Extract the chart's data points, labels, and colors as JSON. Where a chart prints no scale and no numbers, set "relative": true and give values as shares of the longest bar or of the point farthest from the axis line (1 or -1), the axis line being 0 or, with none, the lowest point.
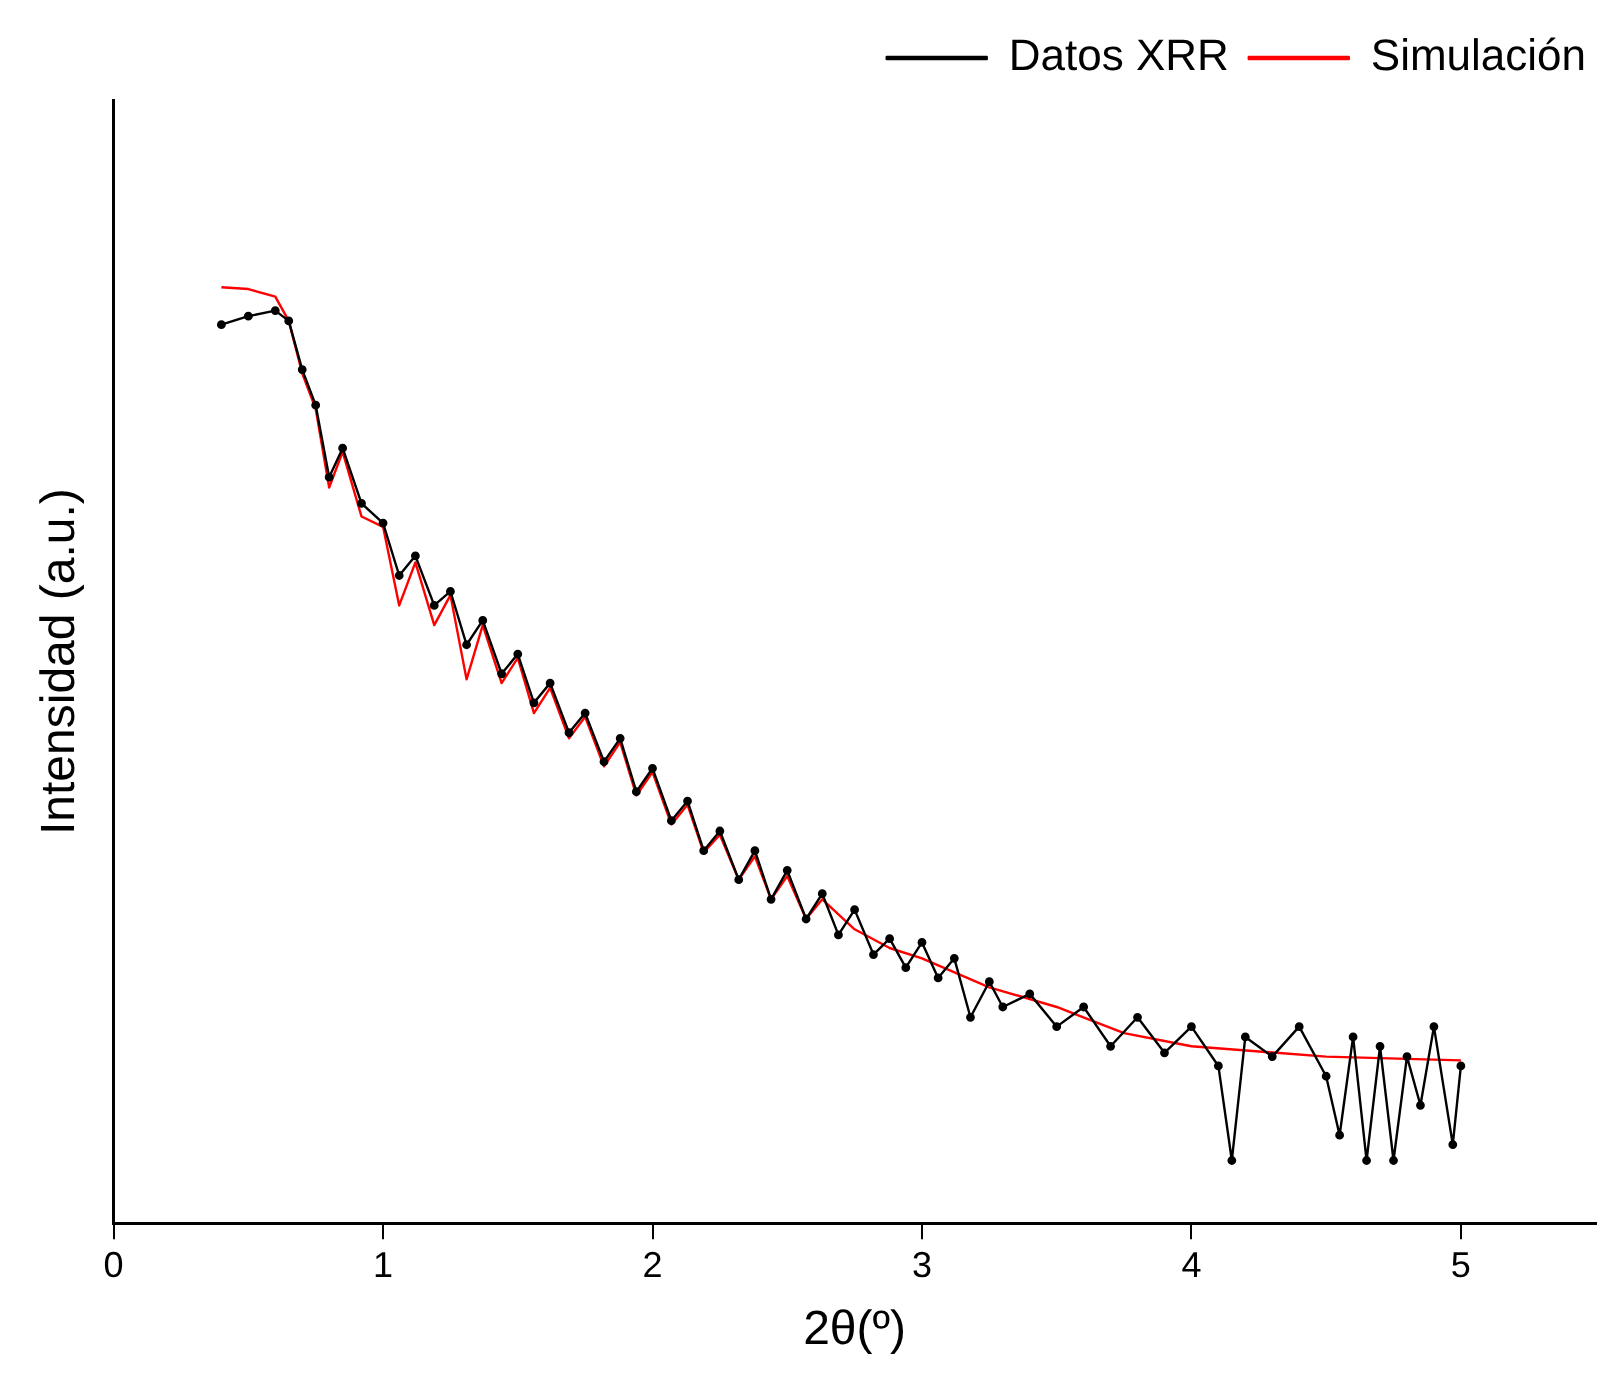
{
  "chart_data": {
    "type": "line",
    "xlabel": "2θ(º)",
    "ylabel": "Intensidad (a.u.)",
    "relative": true,
    "xlim": [
      0,
      5.5
    ],
    "xticks": [
      0,
      1,
      2,
      3,
      4,
      5
    ],
    "tick_labels": "x",
    "grid": false,
    "legend": "top right",
    "series": [
      {
        "name": "Datos XRR",
        "color": "#000000",
        "marker": "circle",
        "x": [
          0.4,
          0.5,
          0.6,
          0.65,
          0.7,
          0.75,
          0.8,
          0.85,
          0.92,
          1.0,
          1.06,
          1.12,
          1.19,
          1.25,
          1.31,
          1.37,
          1.44,
          1.5,
          1.56,
          1.62,
          1.69,
          1.75,
          1.82,
          1.88,
          1.94,
          2.0,
          2.07,
          2.13,
          2.19,
          2.25,
          2.32,
          2.38,
          2.44,
          2.5,
          2.57,
          2.63,
          2.69,
          2.75,
          2.82,
          2.88,
          2.94,
          3.0,
          3.06,
          3.12,
          3.18,
          3.25,
          3.3,
          3.4,
          3.5,
          3.6,
          3.7,
          3.8,
          3.9,
          4.0,
          4.1,
          4.15,
          4.2,
          4.3,
          4.4,
          4.5,
          4.55,
          4.6,
          4.65,
          4.7,
          4.75,
          4.8,
          4.85,
          4.9,
          4.97,
          5.0
        ],
        "values": [
          0.96,
          0.969,
          0.975,
          0.964,
          0.912,
          0.874,
          0.797,
          0.828,
          0.769,
          0.748,
          0.692,
          0.713,
          0.66,
          0.675,
          0.618,
          0.644,
          0.587,
          0.608,
          0.556,
          0.577,
          0.524,
          0.545,
          0.493,
          0.518,
          0.461,
          0.486,
          0.43,
          0.451,
          0.398,
          0.419,
          0.367,
          0.398,
          0.346,
          0.377,
          0.325,
          0.352,
          0.308,
          0.335,
          0.287,
          0.304,
          0.273,
          0.3,
          0.262,
          0.283,
          0.22,
          0.258,
          0.231,
          0.245,
          0.21,
          0.231,
          0.189,
          0.22,
          0.182,
          0.21,
          0.168,
          0.067,
          0.199,
          0.178,
          0.21,
          0.157,
          0.094,
          0.199,
          0.067,
          0.189,
          0.067,
          0.178,
          0.126,
          0.21,
          0.084,
          0.168
        ]
      },
      {
        "name": "Simulación",
        "color": "#ff0000",
        "marker": "none",
        "x": [
          0.4,
          0.5,
          0.6,
          0.65,
          0.7,
          0.75,
          0.8,
          0.85,
          0.92,
          1.0,
          1.06,
          1.12,
          1.19,
          1.25,
          1.31,
          1.37,
          1.44,
          1.5,
          1.56,
          1.62,
          1.69,
          1.75,
          1.82,
          1.88,
          1.94,
          2.0,
          2.07,
          2.13,
          2.19,
          2.25,
          2.32,
          2.38,
          2.44,
          2.5,
          2.57,
          2.63,
          2.75,
          2.88,
          3.0,
          3.25,
          3.5,
          3.75,
          4.0,
          4.5,
          5.0
        ],
        "values": [
          1,
          0.998,
          0.99,
          0.964,
          0.908,
          0.87,
          0.786,
          0.824,
          0.755,
          0.744,
          0.66,
          0.706,
          0.639,
          0.671,
          0.581,
          0.639,
          0.577,
          0.604,
          0.545,
          0.572,
          0.518,
          0.541,
          0.488,
          0.514,
          0.457,
          0.482,
          0.426,
          0.447,
          0.396,
          0.415,
          0.367,
          0.392,
          0.346,
          0.371,
          0.325,
          0.346,
          0.314,
          0.294,
          0.283,
          0.252,
          0.231,
          0.203,
          0.189,
          0.178,
          0.174
        ]
      }
    ]
  }
}
